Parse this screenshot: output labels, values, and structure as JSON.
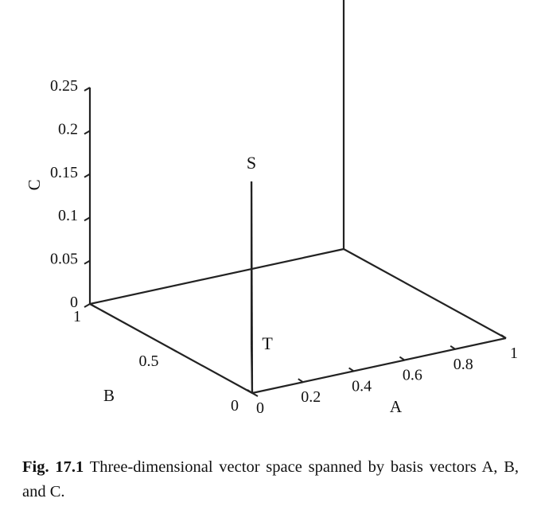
{
  "chart_data": {
    "type": "line",
    "projection": "3d",
    "axes": {
      "x": {
        "label": "A",
        "range": [
          0,
          1
        ],
        "ticks": [
          0,
          0.2,
          0.4,
          0.6,
          0.8,
          1
        ],
        "tick_labels": [
          "0",
          "0.2",
          "0.4",
          "0.6",
          "0.8",
          "1"
        ]
      },
      "y": {
        "label": "B",
        "range": [
          0,
          1
        ],
        "ticks": [
          0,
          0.5,
          1
        ],
        "tick_labels": [
          "0",
          "0.5",
          "1"
        ]
      },
      "z": {
        "label": "C",
        "range": [
          0,
          0.25
        ],
        "ticks": [
          0,
          0.05,
          0.1,
          0.15,
          0.2,
          0.25
        ],
        "tick_labels": [
          "0",
          "0.05",
          "0.1",
          "0.15",
          "0.2",
          "0.25"
        ]
      }
    },
    "points": [
      {
        "name": "S",
        "a": 0.24,
        "b": 0.38,
        "c": 0.19
      },
      {
        "name": "T",
        "a": 0.24,
        "b": 0.38,
        "c": 0.0
      }
    ],
    "segments": [
      [
        "O",
        "S"
      ],
      [
        "O",
        "T"
      ],
      [
        "S",
        "T"
      ]
    ],
    "grid": false
  },
  "caption": {
    "label": "Fig. 17.1",
    "text": "Three-dimensional vector space spanned by basis vectors A, B, and C."
  }
}
